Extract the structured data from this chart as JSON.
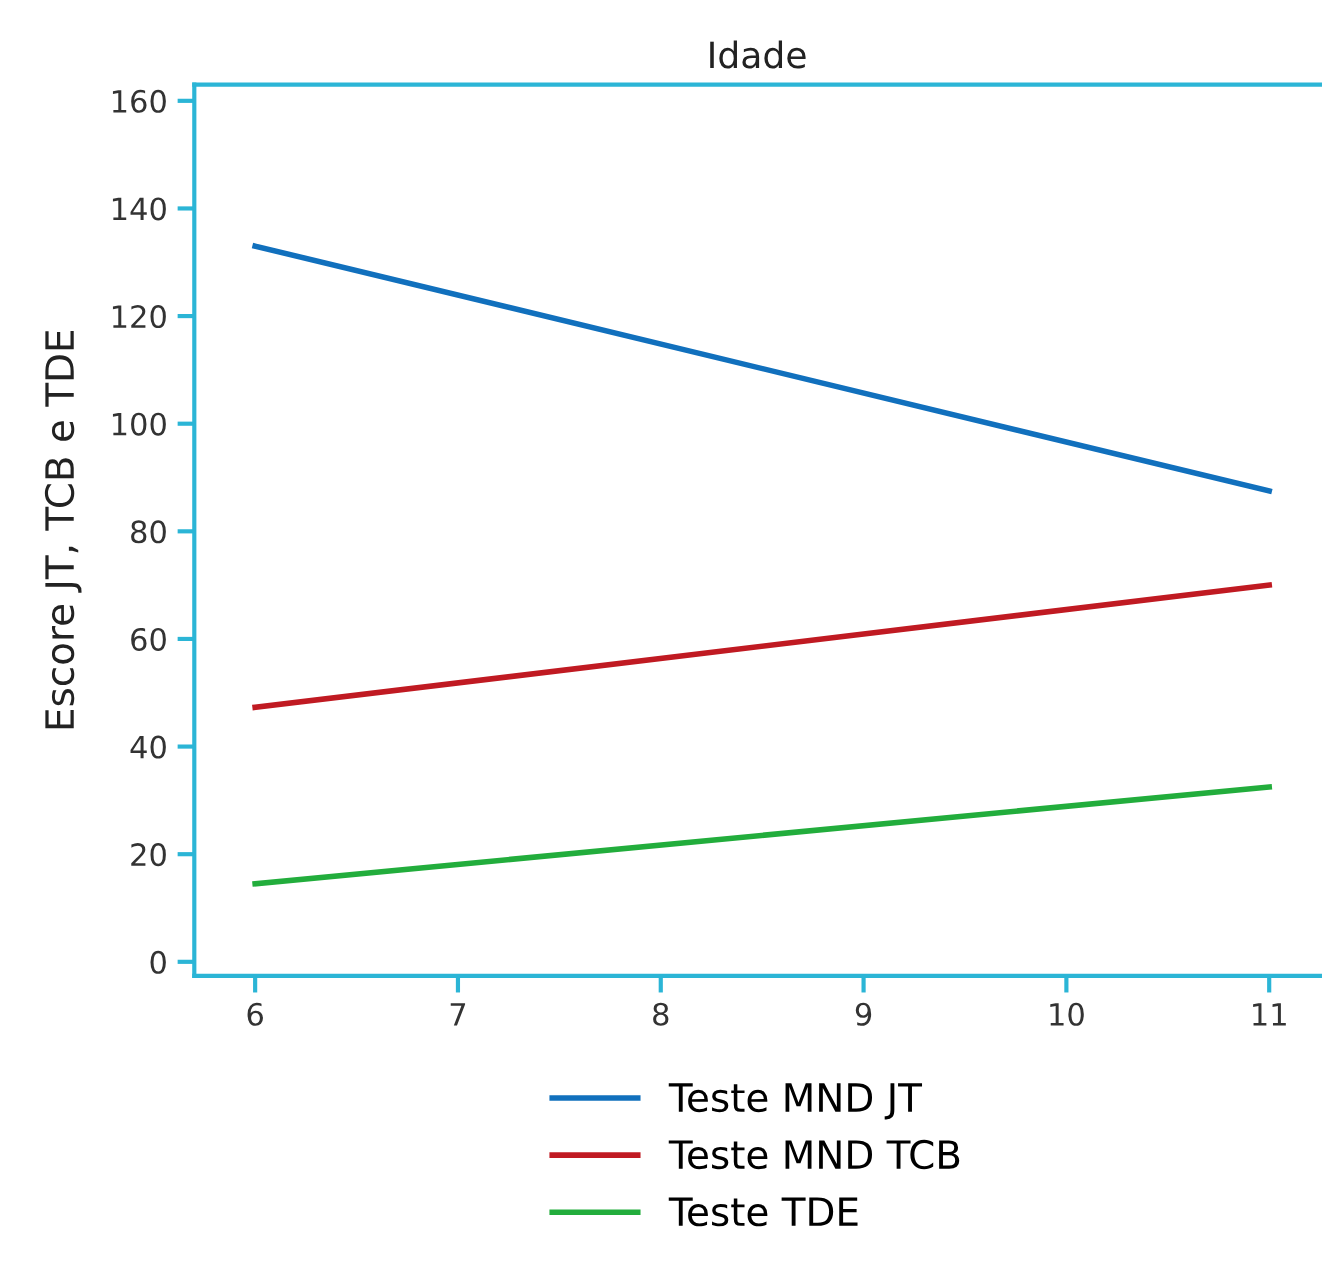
{
  "chart_data": {
    "type": "line",
    "title": "Idade",
    "ylabel": "Escore JT, TCB e TDE",
    "x": [
      6,
      11
    ],
    "series": [
      {
        "name": "Teste MND JT",
        "color": "#1170bd",
        "values": [
          133,
          87.5
        ]
      },
      {
        "name": "Teste MND TCB",
        "color": "#c01a22",
        "values": [
          47.3,
          70
        ]
      },
      {
        "name": "Teste TDE",
        "color": "#22ad3c",
        "values": [
          14.5,
          32.5
        ]
      }
    ],
    "xlim": [
      5.7,
      11.25
    ],
    "ylim": [
      -2.6,
      163
    ],
    "xticks": [
      6,
      7,
      8,
      9,
      10,
      11
    ],
    "yticks": [
      0,
      20,
      40,
      60,
      80,
      100,
      120,
      140,
      160
    ],
    "grid": false,
    "legend": "bottom",
    "marker": "none",
    "line_style": "solid"
  }
}
